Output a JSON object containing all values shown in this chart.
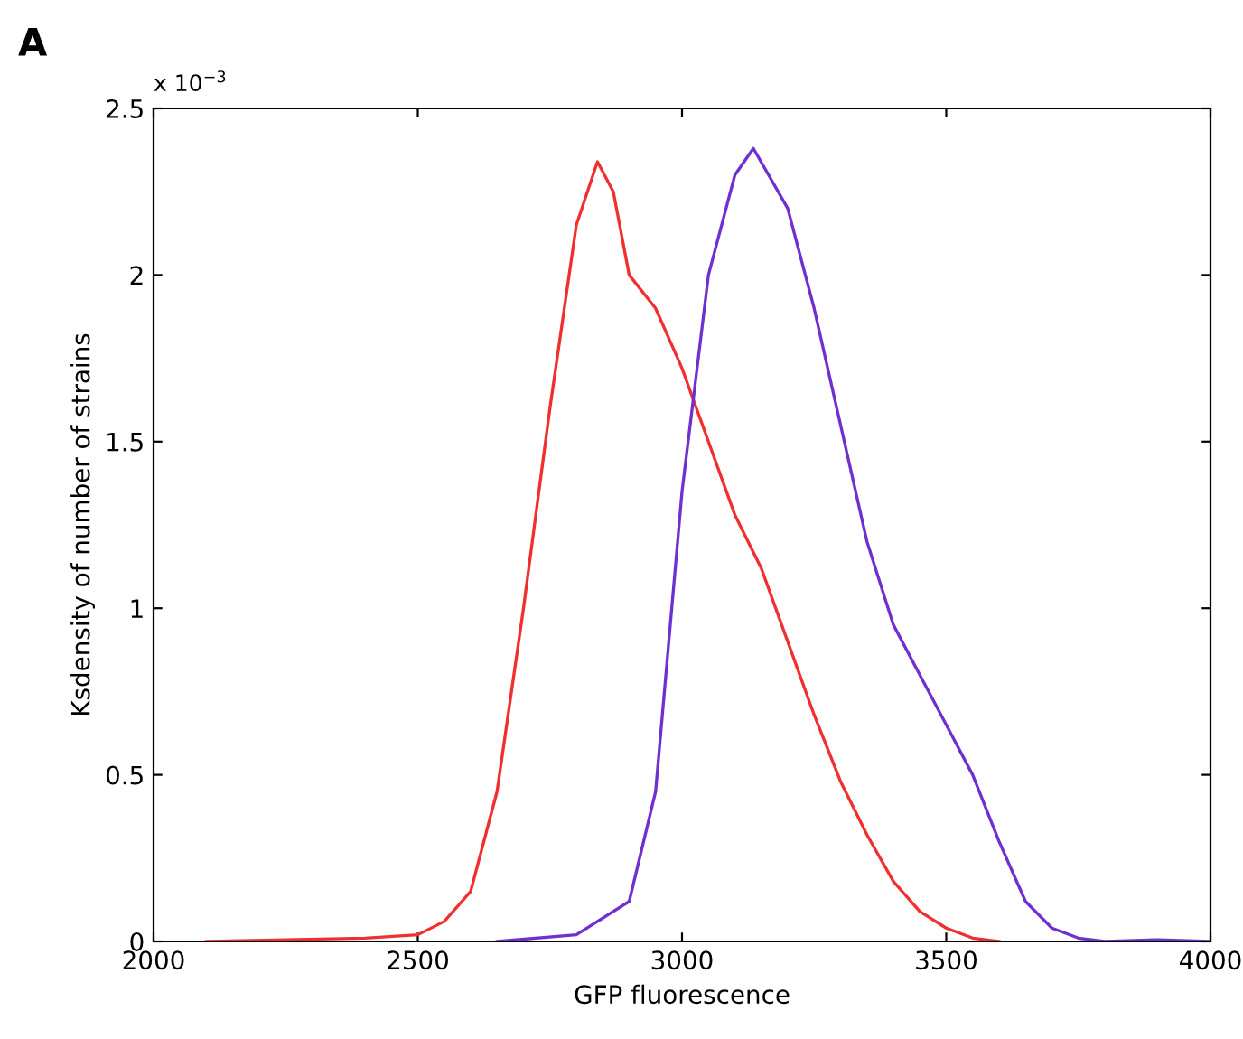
{
  "chart_data": {
    "type": "line",
    "xlabel": "GFP fluorescence",
    "ylabel": "Ksdensity of number of strains",
    "annotations": [
      "A",
      "x 10$^{−3}$"
    ],
    "series": [
      {
        "color": "#f03030",
        "x": [
          2100,
          2250,
          2400,
          2500,
          2550,
          2600,
          2650,
          2700,
          2750,
          2800,
          2840,
          2870,
          2900,
          2950,
          3000,
          3050,
          3100,
          3150,
          3200,
          3250,
          3300,
          3350,
          3400,
          3450,
          3500,
          3550,
          3600
        ],
        "values": [
          0,
          0.005,
          0.01,
          0.02,
          0.06,
          0.15,
          0.45,
          1.0,
          1.6,
          2.15,
          2.34,
          2.25,
          2.0,
          1.9,
          1.72,
          1.5,
          1.28,
          1.12,
          0.9,
          0.68,
          0.48,
          0.32,
          0.18,
          0.09,
          0.04,
          0.01,
          0
        ]
      },
      {
        "color": "#7030d0",
        "x": [
          2650,
          2800,
          2900,
          2950,
          3000,
          3050,
          3100,
          3135,
          3200,
          3250,
          3300,
          3350,
          3400,
          3450,
          3500,
          3550,
          3600,
          3650,
          3700,
          3750,
          3800,
          3900,
          4000
        ],
        "values": [
          0,
          0.02,
          0.12,
          0.45,
          1.35,
          2.0,
          2.3,
          2.38,
          2.2,
          1.9,
          1.55,
          1.2,
          0.95,
          0.8,
          0.65,
          0.5,
          0.3,
          0.12,
          0.04,
          0.01,
          0,
          0.005,
          0
        ]
      }
    ],
    "xlim": [
      2000,
      4000
    ],
    "xticks": [
      2000,
      2500,
      3000,
      3500,
      4000
    ],
    "ylim": [
      0,
      2.5
    ],
    "yticks": [
      0,
      0.5,
      1,
      1.5,
      2,
      2.5
    ],
    "grid": false,
    "line_style": "solid",
    "marker": "none"
  }
}
